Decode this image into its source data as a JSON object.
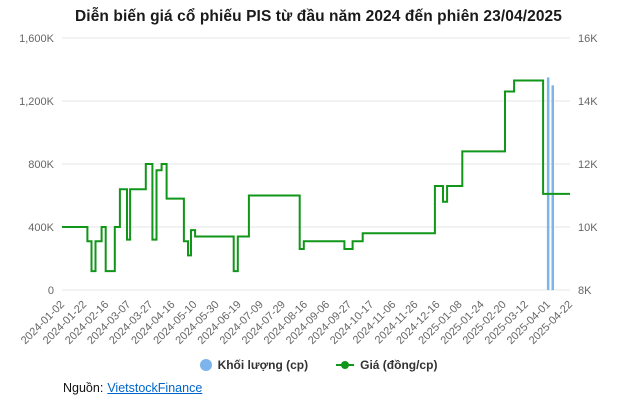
{
  "legend": {
    "volume_label": "Khối lượng (cp)",
    "price_label": "Giá (đồng/cp)"
  },
  "footer": {
    "source_label": "Nguồn:",
    "source_link": "VietstockFinance"
  },
  "chart_data": {
    "type": "line",
    "title": "Diễn biến giá cổ phiếu PIS từ đầu năm 2024 đến phiên 23/04/2025",
    "grid": true,
    "legend_position": "bottom",
    "x_labels": [
      "2024-01-02",
      "2024-01-22",
      "2024-02-16",
      "2024-03-07",
      "2024-03-27",
      "2024-04-16",
      "2024-05-10",
      "2024-05-30",
      "2024-06-19",
      "2024-07-09",
      "2024-07-29",
      "2024-08-16",
      "2024-09-06",
      "2024-09-27",
      "2024-10-17",
      "2024-11-06",
      "2024-11-26",
      "2024-12-16",
      "2025-01-08",
      "2025-01-24",
      "2025-02-20",
      "2025-03-12",
      "2025-04-01",
      "2025-04-22"
    ],
    "left_axis": {
      "title": "Khối lượng (cp)",
      "min": 0,
      "max": 1600,
      "unit": "K cp",
      "ticks": [
        "0",
        "400K",
        "800K",
        "1,200K",
        "1,600K"
      ]
    },
    "right_axis": {
      "title": "Giá (đồng/cp)",
      "min": 8,
      "max": 16,
      "unit": "K đồng/cp",
      "ticks": [
        "8K",
        "10K",
        "12K",
        "14K",
        "16K"
      ]
    },
    "price_series": {
      "name": "Giá (đồng/cp)",
      "color": "#109618",
      "points_format": "[x_fraction_of_date_range, price_in_thousand_dong]",
      "points": [
        [
          0.0,
          10.0
        ],
        [
          0.05,
          10.0
        ],
        [
          0.05,
          9.55
        ],
        [
          0.058,
          9.55
        ],
        [
          0.058,
          8.6
        ],
        [
          0.066,
          8.6
        ],
        [
          0.066,
          9.55
        ],
        [
          0.078,
          9.55
        ],
        [
          0.078,
          10.0
        ],
        [
          0.086,
          10.0
        ],
        [
          0.086,
          8.6
        ],
        [
          0.104,
          8.6
        ],
        [
          0.104,
          10.0
        ],
        [
          0.114,
          10.0
        ],
        [
          0.114,
          11.2
        ],
        [
          0.128,
          11.2
        ],
        [
          0.128,
          9.6
        ],
        [
          0.134,
          9.6
        ],
        [
          0.134,
          11.2
        ],
        [
          0.165,
          11.2
        ],
        [
          0.165,
          12.0
        ],
        [
          0.178,
          12.0
        ],
        [
          0.178,
          9.6
        ],
        [
          0.186,
          9.6
        ],
        [
          0.186,
          11.8
        ],
        [
          0.196,
          11.8
        ],
        [
          0.196,
          12.0
        ],
        [
          0.206,
          12.0
        ],
        [
          0.206,
          10.9
        ],
        [
          0.24,
          10.9
        ],
        [
          0.24,
          9.55
        ],
        [
          0.248,
          9.55
        ],
        [
          0.248,
          9.1
        ],
        [
          0.254,
          9.1
        ],
        [
          0.254,
          9.9
        ],
        [
          0.262,
          9.9
        ],
        [
          0.262,
          9.7
        ],
        [
          0.338,
          9.7
        ],
        [
          0.338,
          8.6
        ],
        [
          0.346,
          8.6
        ],
        [
          0.346,
          9.7
        ],
        [
          0.368,
          9.7
        ],
        [
          0.368,
          11.0
        ],
        [
          0.468,
          11.0
        ],
        [
          0.468,
          9.3
        ],
        [
          0.476,
          9.3
        ],
        [
          0.476,
          9.55
        ],
        [
          0.556,
          9.55
        ],
        [
          0.556,
          9.3
        ],
        [
          0.572,
          9.3
        ],
        [
          0.572,
          9.55
        ],
        [
          0.592,
          9.55
        ],
        [
          0.592,
          9.8
        ],
        [
          0.734,
          9.8
        ],
        [
          0.734,
          11.3
        ],
        [
          0.75,
          11.3
        ],
        [
          0.75,
          10.8
        ],
        [
          0.758,
          10.8
        ],
        [
          0.758,
          11.3
        ],
        [
          0.788,
          11.3
        ],
        [
          0.788,
          12.4
        ],
        [
          0.872,
          12.4
        ],
        [
          0.872,
          14.3
        ],
        [
          0.89,
          14.3
        ],
        [
          0.89,
          14.65
        ],
        [
          0.947,
          14.65
        ],
        [
          0.947,
          11.05
        ],
        [
          1.0,
          11.05
        ]
      ]
    },
    "volume_series": {
      "name": "Khối lượng (cp)",
      "color": "#7cb5ec",
      "bars_format": "{x: x_fraction_of_date_range, v: volume_in_thousand_cp}",
      "bars": [
        {
          "x": 0.957,
          "v": 1350
        },
        {
          "x": 0.966,
          "v": 1300
        }
      ]
    },
    "colors": {
      "grid": "#e6e6e6",
      "tick": "#666666",
      "title": "#1a1a1a"
    }
  }
}
